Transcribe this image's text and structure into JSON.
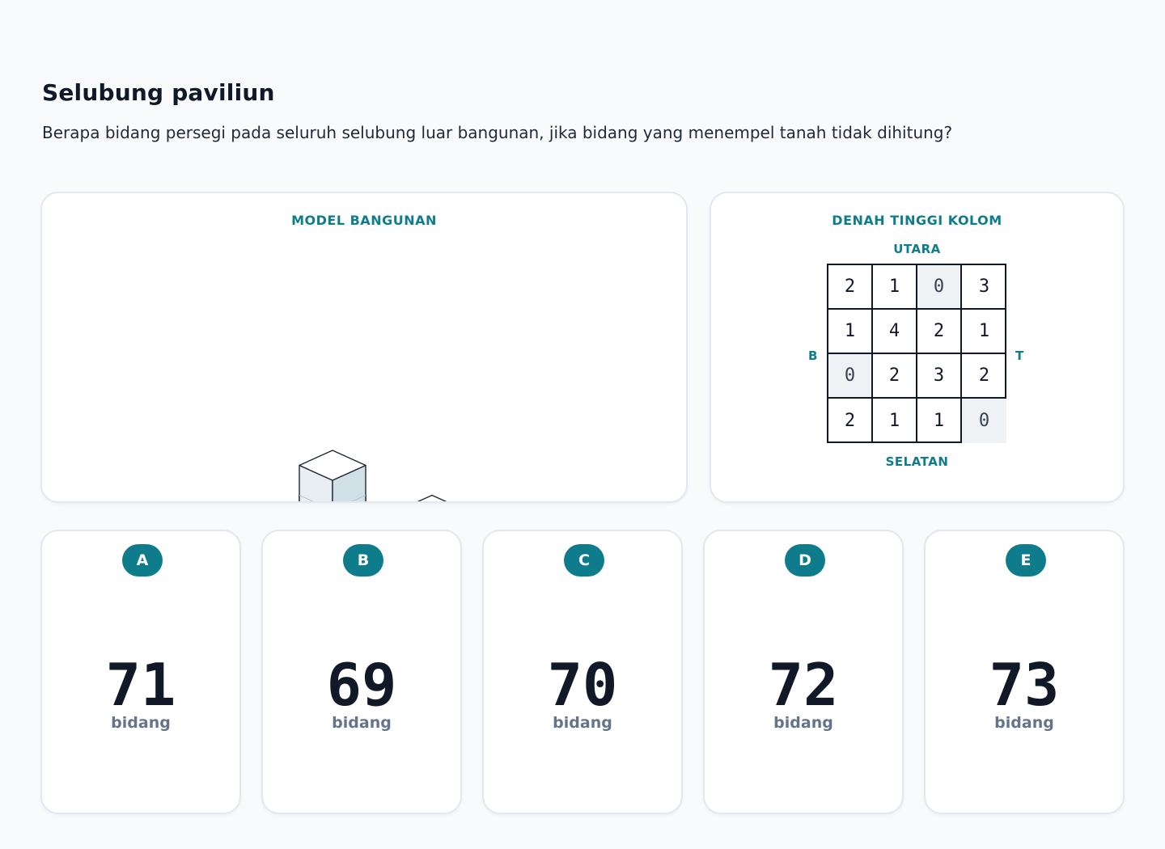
{
  "header": {
    "title": "Selubung paviliun",
    "question": "Berapa bidang persegi pada seluruh selubung luar bangunan, jika bidang yang menempel tanah tidak dihitung?"
  },
  "model": {
    "label": "MODEL BANGUNAN"
  },
  "plan": {
    "label": "DENAH TINGGI KOLOM",
    "north": "UTARA",
    "south": "SELATAN",
    "west": "B",
    "east": "T",
    "heights": [
      [
        "2",
        "1",
        "0",
        "3"
      ],
      [
        "1",
        "4",
        "2",
        "1"
      ],
      [
        "0",
        "2",
        "3",
        "2"
      ],
      [
        "2",
        "1",
        "1",
        "0"
      ]
    ]
  },
  "options": [
    {
      "letter": "A",
      "value": "71",
      "unit": "bidang"
    },
    {
      "letter": "B",
      "value": "69",
      "unit": "bidang"
    },
    {
      "letter": "C",
      "value": "70",
      "unit": "bidang"
    },
    {
      "letter": "D",
      "value": "72",
      "unit": "bidang"
    },
    {
      "letter": "E",
      "value": "73",
      "unit": "bidang"
    }
  ],
  "colors": {
    "accent": "#0f7c8c",
    "top_face": "#ffffff",
    "left_face": "#e8eef2",
    "right_face": "#d1e0e7",
    "empty_cell": "#eef2f5"
  }
}
